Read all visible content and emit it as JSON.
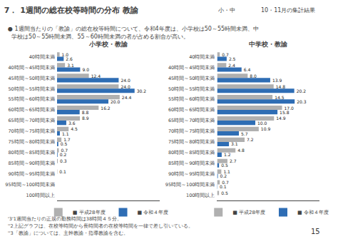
{
  "title": "7． 1週間の総在校等時間の分布 教諭",
  "subtitle": [
    "● 1週間当たりの「教諭」の総在校等時間について、令和4年度は、小学校は50～55時間未満、中",
    "  学校は50～55時間未満、55～60時間未満の者が占める割合が高い。"
  ],
  "annotations": [
    "小・中",
    "10・11月の集計結果",
    "'3'1週間当たりの正規の勤務時間は38時間４５分。",
    "''2上記グラフは、在校等時間から長時間者の在校等時間を一律で差し引いている。",
    "''3「教諭」については、主幹教諭・指導教諭を含む。",
    "15"
  ],
  "chart_data": [
    {
      "type": "bar",
      "orientation": "horizontal",
      "title": "小学校・教諭",
      "categories": [
        "40時間未満",
        "40時間～45時間未満",
        "45時間～50時間未満",
        "50時間～55時間未満",
        "55時間～60時間未満",
        "60時間～65時間未満",
        "65時間～70時間未満",
        "70時間～75時間未満",
        "75時間～80時間未満",
        "80時間～85時間未満",
        "85時間～90時間未満",
        "90時間～95時間未満",
        "95時間～100時間未満",
        "100時間以上"
      ],
      "series": [
        {
          "name": "■ 平成28年度",
          "color": "#b0b0b0",
          "values": [
            1.0,
            3.1,
            12.4,
            24.0,
            24.4,
            16.2,
            8.9,
            4.5,
            1.7,
            0.7,
            0.3,
            0.1,
            0.0,
            0.0
          ],
          "value_labels": [
            "1.0",
            "3.1",
            "12.4",
            "24.0",
            "24.4",
            "16.2",
            "8.9",
            "4.5",
            "1.7",
            "0.7",
            "0.3",
            "0.1",
            null,
            null
          ]
        },
        {
          "name": "■ 令和４年度",
          "color": "#2e6db4",
          "values": [
            2.6,
            9.0,
            24.0,
            30.2,
            20.0,
            8.8,
            3.6,
            1.1,
            0.5,
            0.2,
            0.0,
            0.0,
            0.0,
            0.0
          ],
          "value_labels": [
            "2.6",
            "9.0",
            "24.0",
            "30.2",
            "20.0",
            "8.8",
            "3.6",
            "1.1",
            "0.5",
            "0.2",
            null,
            null,
            null,
            null
          ]
        }
      ],
      "xlim": [
        0,
        39.864
      ],
      "tick_labels": "y",
      "grid": false,
      "legend": "bottom",
      "data_labels": true
    },
    {
      "type": "bar",
      "orientation": "horizontal",
      "title": "中学校・教諭",
      "categories": [
        "40時間未満",
        "40時間～45時間未満",
        "45時間～50時間未満",
        "50時間～55時間未満",
        "55時間～60時間未満",
        "60時間～65時間未満",
        "65時間～70時間未満",
        "70時間～75時間未満",
        "75時間～80時間未満",
        "80時間～85時間未満",
        "85時間～90時間未満",
        "90時間～95時間未満",
        "95時間～100時間未満",
        "100時間以上"
      ],
      "series": [
        {
          "name": "■ 平成28年度",
          "color": "#b0b0b0",
          "values": [
            0.7,
            2.4,
            8.0,
            14.8,
            14.5,
            17.0,
            14.9,
            10.9,
            7.2,
            4.8,
            2.7,
            1.1,
            0.7,
            0.5
          ],
          "value_labels": [
            "0.7",
            "2.4",
            "8.0",
            "14.8",
            "14.5",
            "17.0",
            "14.9",
            "10.9",
            "7.2",
            "4.8",
            "2.7",
            "1.1",
            "0.7",
            "0.5"
          ]
        },
        {
          "name": "■ 令和４年度",
          "color": "#2e6db4",
          "values": [
            2.5,
            6.4,
            13.9,
            20.2,
            20.3,
            15.8,
            10.0,
            5.7,
            3.1,
            1.2,
            0.5,
            0.2,
            0.1,
            0.0
          ],
          "value_labels": [
            "2.5",
            "6.4",
            "13.9",
            "20.2",
            "20.3",
            "15.8",
            "10.0",
            "5.7",
            "3.1",
            "1.2",
            "0.5",
            "0.2",
            "0.1",
            null
          ]
        }
      ],
      "xlim": [
        0,
        26.796
      ],
      "tick_labels": "y",
      "grid": false,
      "legend": "bottom",
      "data_labels": true
    }
  ]
}
